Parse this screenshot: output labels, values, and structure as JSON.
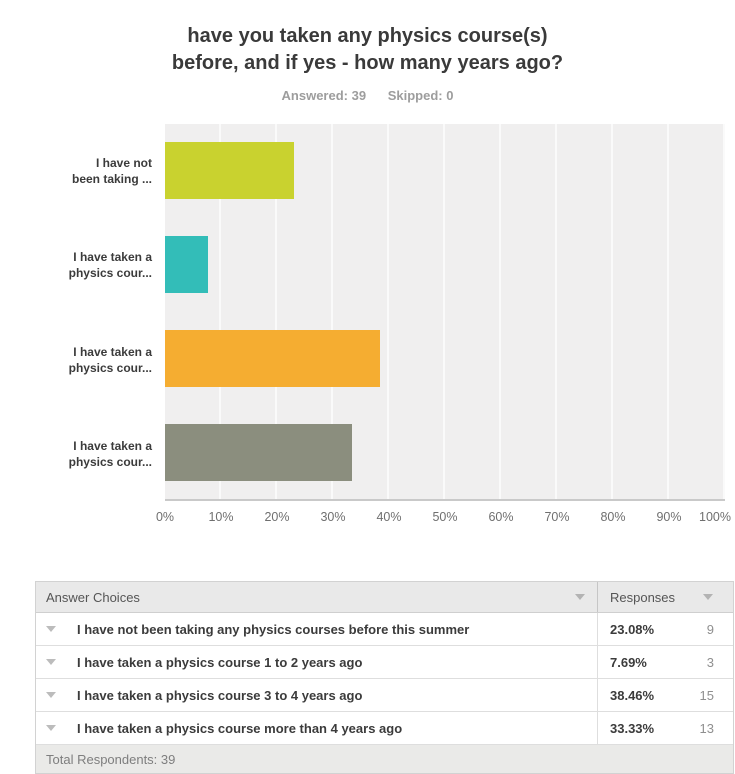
{
  "header": {
    "title_line1": "have you taken any physics course(s)",
    "title_line2": "before, and if yes - how many years ago?",
    "answered": "Answered: 39",
    "skipped": "Skipped: 0"
  },
  "chart_data": {
    "type": "bar",
    "orientation": "horizontal",
    "title": "have you taken any physics course(s) before, and if yes - how many years ago?",
    "categories_full": [
      "I have not been taking any physics courses before this summer",
      "I have taken a physics course 1 to 2 years ago",
      "I have taken a physics course 3 to 4 years ago",
      "I have taken a physics course more than 4 years ago"
    ],
    "axis_labels_truncated": [
      [
        "I have not",
        "been taking ..."
      ],
      [
        "I have taken a",
        "physics cour..."
      ],
      [
        "I have taken a",
        "physics cour..."
      ],
      [
        "I have taken a",
        "physics cour..."
      ]
    ],
    "values": [
      23.08,
      7.69,
      38.46,
      33.33
    ],
    "counts": [
      9,
      3,
      15,
      13
    ],
    "bar_colors": [
      "#c9d22f",
      "#33bdb8",
      "#f5ad31",
      "#8b8e7e"
    ],
    "x_ticks": [
      "0%",
      "10%",
      "20%",
      "30%",
      "40%",
      "50%",
      "60%",
      "70%",
      "80%",
      "90%",
      "100%"
    ],
    "xlim": [
      0,
      100
    ],
    "grid": true,
    "legend": false,
    "plot_background": "#f0efef"
  },
  "table": {
    "headers": {
      "answer_choices": "Answer Choices",
      "responses": "Responses"
    },
    "rows": [
      {
        "choice": "I have not been taking any physics courses before this summer",
        "percent": "23.08%",
        "count": "9"
      },
      {
        "choice": "I have taken a physics course 1 to 2 years ago",
        "percent": "7.69%",
        "count": "3"
      },
      {
        "choice": "I have taken a physics course 3 to 4 years ago",
        "percent": "38.46%",
        "count": "15"
      },
      {
        "choice": "I have taken a physics course more than 4 years ago",
        "percent": "33.33%",
        "count": "13"
      }
    ],
    "footer": "Total Respondents: 39"
  }
}
